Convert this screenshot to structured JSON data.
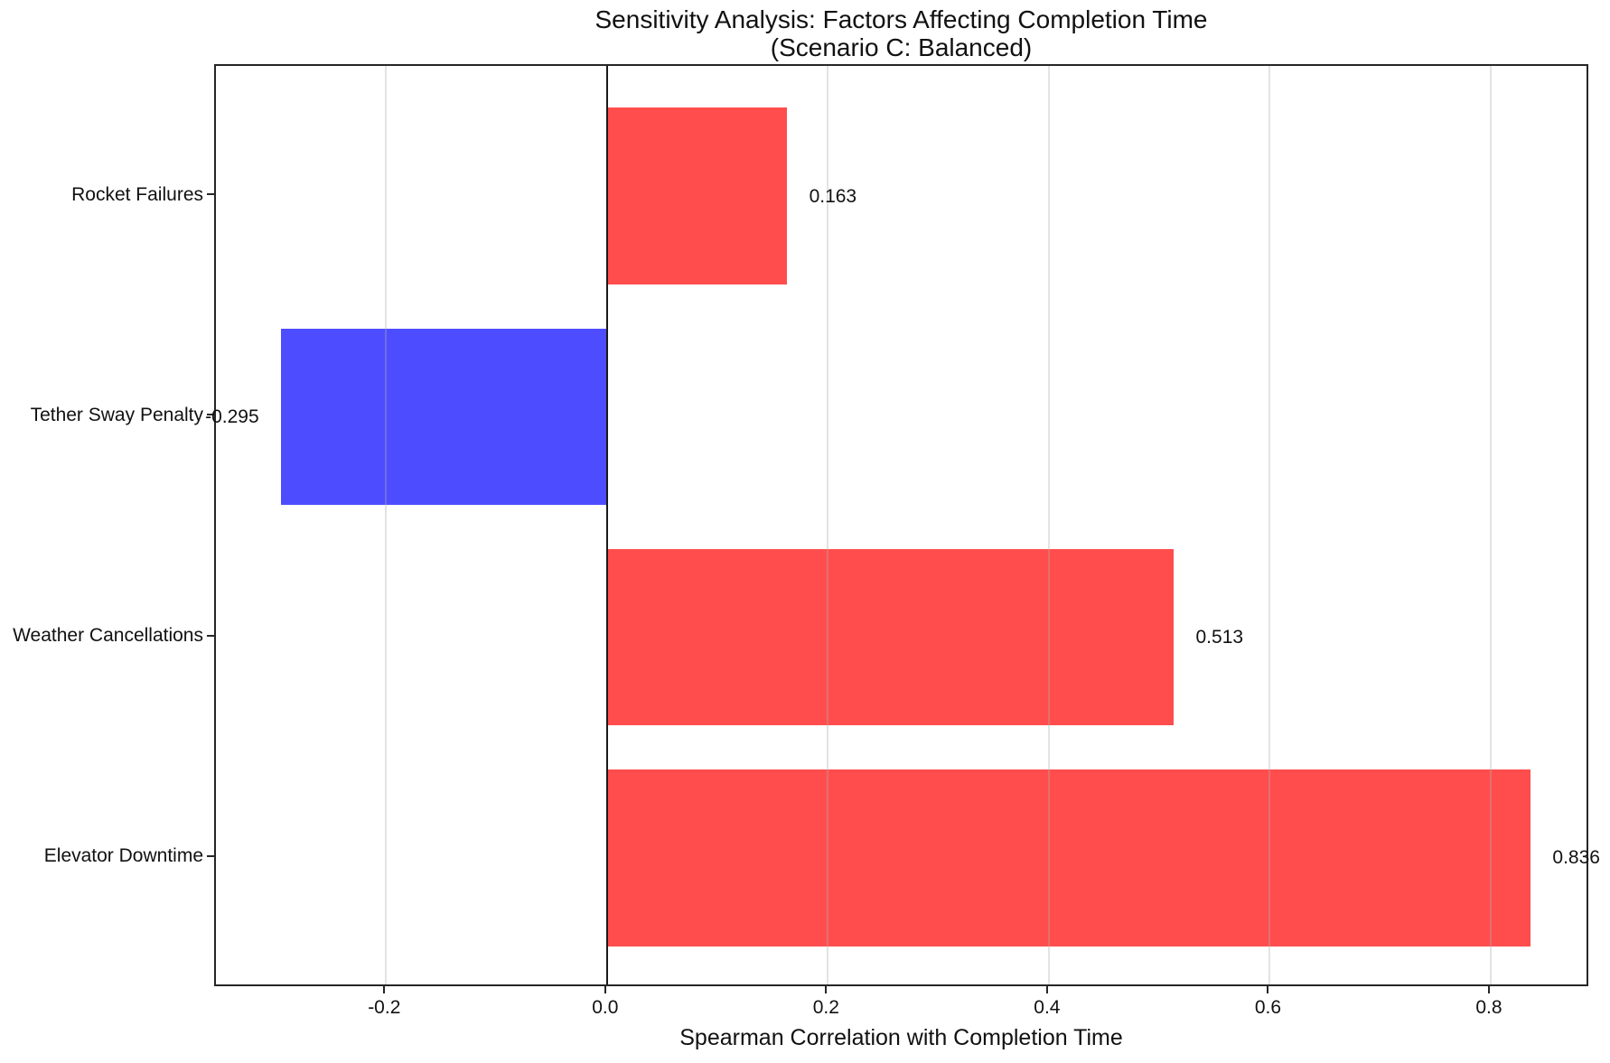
{
  "chart_data": {
    "type": "bar",
    "orientation": "horizontal",
    "title": "Sensitivity Analysis: Factors Affecting Completion Time",
    "subtitle": "(Scenario C: Balanced)",
    "xlabel": "Spearman Correlation with Completion Time",
    "categories_top_to_bottom": [
      "Rocket Failures",
      "Tether Sway Penalty",
      "Weather Cancellations",
      "Elevator Downtime"
    ],
    "series": [
      {
        "name": "Spearman correlation",
        "values_top_to_bottom": [
          0.163,
          -0.295,
          0.513,
          0.836
        ],
        "value_labels_top_to_bottom": [
          "0.163",
          "-0.295",
          "0.513",
          "0.836"
        ]
      }
    ],
    "colors": {
      "positive_bar": "#ff4d4d",
      "negative_bar": "#4d4dff",
      "zero_line": "#1a1a1a",
      "gridline": "rgba(176,176,176,0.35)"
    },
    "xlim": [
      -0.354,
      0.89
    ],
    "ylim": [
      -0.59,
      3.59
    ],
    "bar_thickness_units": 0.8,
    "y_positions_top_to_bottom": [
      3,
      2,
      1,
      0
    ],
    "xticks": [
      -0.2,
      0.0,
      0.2,
      0.4,
      0.6,
      0.8
    ],
    "xtick_labels": [
      "-0.2",
      "0.0",
      "0.2",
      "0.4",
      "0.6",
      "0.8"
    ],
    "value_label_offset_units": 0.02,
    "grid": "vertical",
    "legend": "none"
  }
}
